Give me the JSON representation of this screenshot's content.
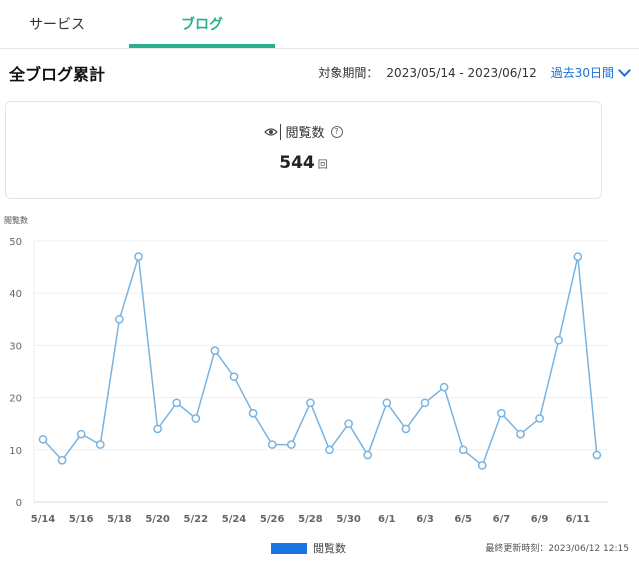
{
  "tabs": {
    "services": "サービス",
    "blog": "ブログ"
  },
  "header": {
    "title": "全ブログ累計",
    "period_label": "対象期間：",
    "period_range": "2023/05/14 - 2023/06/12",
    "period_select": "過去30日間"
  },
  "summary": {
    "metric_label": "閲覧数",
    "help_glyph": "?",
    "value": "544",
    "unit": "回"
  },
  "chart_title": "閲覧数",
  "legend_label": "閲覧数",
  "updated_text": "最終更新時刻：2023/06/12 12:15",
  "colors": {
    "accent": "#2ab08c",
    "link": "#1a6fd1",
    "line": "#7ab3df",
    "legend": "#1a74e4"
  },
  "chart_data": {
    "type": "line",
    "ylabel": "閲覧数",
    "ylim": [
      0,
      50
    ],
    "yticks": [
      0,
      10,
      20,
      30,
      40,
      50
    ],
    "grid": true,
    "legend_position": "bottom",
    "x": [
      "5/14",
      "5/15",
      "5/16",
      "5/17",
      "5/18",
      "5/19",
      "5/20",
      "5/21",
      "5/22",
      "5/23",
      "5/24",
      "5/25",
      "5/26",
      "5/27",
      "5/28",
      "5/29",
      "5/30",
      "5/31",
      "6/1",
      "6/2",
      "6/3",
      "6/4",
      "6/5",
      "6/6",
      "6/7",
      "6/8",
      "6/9",
      "6/10",
      "6/11",
      "6/12"
    ],
    "xtick_labels": [
      "5/14",
      "5/16",
      "5/18",
      "5/20",
      "5/22",
      "5/24",
      "5/26",
      "5/28",
      "5/30",
      "6/1",
      "6/3",
      "6/5",
      "6/7",
      "6/9",
      "6/11"
    ],
    "series": [
      {
        "name": "閲覧数",
        "values": [
          12,
          8,
          13,
          11,
          35,
          47,
          14,
          19,
          16,
          29,
          24,
          17,
          11,
          11,
          19,
          10,
          15,
          9,
          19,
          14,
          19,
          22,
          10,
          7,
          17,
          13,
          16,
          31,
          47,
          9
        ]
      }
    ]
  }
}
